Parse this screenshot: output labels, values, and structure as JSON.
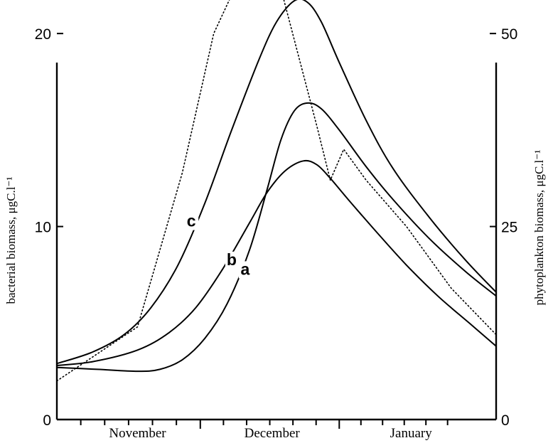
{
  "chart_data": {
    "type": "line",
    "x_unit": "days from start of November",
    "x_range": [
      -3,
      95
    ],
    "months": [
      "November",
      "December",
      "January"
    ],
    "month_centers": [
      15,
      45,
      76
    ],
    "month_boundaries": [
      -3,
      29,
      60,
      89
    ],
    "left_axis": {
      "label": "bacterial biomass, μgC.l⁻¹",
      "ylim": [
        0,
        21
      ],
      "ticks": [
        0,
        10,
        20
      ],
      "tick_labels": [
        "0",
        "10",
        "20"
      ]
    },
    "right_axis": {
      "label": "phytoplankton biomass, μgC.l⁻¹",
      "ylim": [
        0,
        52.5
      ],
      "ticks": [
        0,
        25,
        50
      ],
      "tick_labels": [
        "0",
        "25",
        "50"
      ]
    },
    "series": [
      {
        "name": "a",
        "axis": "left",
        "style": "solid",
        "points": [
          [
            -3,
            2.7
          ],
          [
            6,
            2.6
          ],
          [
            15,
            2.5
          ],
          [
            20,
            2.6
          ],
          [
            25,
            3.1
          ],
          [
            30,
            4.2
          ],
          [
            35,
            6.0
          ],
          [
            40,
            8.8
          ],
          [
            44,
            12.0
          ],
          [
            47,
            14.5
          ],
          [
            50,
            16.0
          ],
          [
            53,
            16.4
          ],
          [
            56,
            16.1
          ],
          [
            60,
            15.0
          ],
          [
            66,
            13.1
          ],
          [
            72,
            11.4
          ],
          [
            80,
            9.4
          ],
          [
            88,
            7.7
          ],
          [
            95,
            6.4
          ]
        ],
        "label": "a",
        "label_at": [
          39,
          7.5
        ]
      },
      {
        "name": "b",
        "axis": "left",
        "style": "solid",
        "points": [
          [
            -3,
            2.8
          ],
          [
            5,
            3.0
          ],
          [
            15,
            3.6
          ],
          [
            22,
            4.5
          ],
          [
            28,
            5.8
          ],
          [
            34,
            7.8
          ],
          [
            40,
            10.2
          ],
          [
            44,
            11.8
          ],
          [
            48,
            12.9
          ],
          [
            52,
            13.4
          ],
          [
            55,
            13.2
          ],
          [
            58,
            12.5
          ],
          [
            62,
            11.4
          ],
          [
            68,
            9.8
          ],
          [
            75,
            8.0
          ],
          [
            82,
            6.4
          ],
          [
            89,
            5.0
          ],
          [
            95,
            3.8
          ]
        ],
        "label": "b",
        "label_at": [
          36,
          8.0
        ]
      },
      {
        "name": "c",
        "axis": "left",
        "style": "solid",
        "points": [
          [
            -3,
            2.9
          ],
          [
            5,
            3.5
          ],
          [
            12,
            4.4
          ],
          [
            18,
            5.8
          ],
          [
            24,
            8.0
          ],
          [
            30,
            11.2
          ],
          [
            36,
            15.0
          ],
          [
            42,
            18.6
          ],
          [
            46,
            20.6
          ],
          [
            50,
            21.7
          ],
          [
            53,
            21.6
          ],
          [
            56,
            20.6
          ],
          [
            60,
            18.5
          ],
          [
            66,
            15.5
          ],
          [
            72,
            13.0
          ],
          [
            80,
            10.5
          ],
          [
            88,
            8.3
          ],
          [
            95,
            6.6
          ]
        ],
        "label": "c",
        "label_at": [
          27,
          10.0
        ]
      },
      {
        "name": "",
        "axis": "right",
        "style": "dotted",
        "points": [
          [
            -3,
            5.0
          ],
          [
            15,
            12
          ],
          [
            25,
            32
          ],
          [
            32,
            50
          ],
          [
            36,
            55
          ],
          [
            46,
            58
          ],
          [
            55,
            38
          ],
          [
            58,
            31
          ],
          [
            61,
            35
          ],
          [
            66,
            31
          ],
          [
            75,
            25
          ],
          [
            85,
            17
          ],
          [
            95,
            11
          ]
        ]
      }
    ]
  }
}
